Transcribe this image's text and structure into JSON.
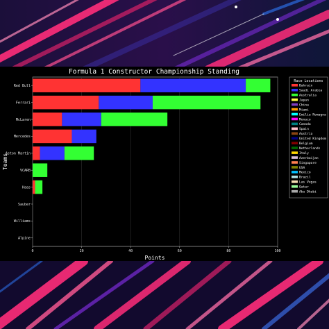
{
  "chart_data": {
    "type": "bar",
    "orientation": "horizontal",
    "stacked": true,
    "title": "Formula 1 Constructor Championship Standing",
    "xlabel": "Points",
    "ylabel": "Teams",
    "xlim": [
      0,
      100
    ],
    "xticks": [
      0,
      20,
      40,
      60,
      80,
      100
    ],
    "grid": true,
    "legend_placement": "right",
    "legend_title": "Race Locations",
    "categories": [
      "Red Bull",
      "Ferrari",
      "McLaren",
      "Mercedes",
      "Aston Martin",
      "VCARB",
      "Haas",
      "Sauber",
      "Williams",
      "Alpine"
    ],
    "series": [
      {
        "name": "Bahrain",
        "color": "#ff3333",
        "values": [
          44,
          27,
          12,
          16,
          3,
          0,
          1,
          0,
          0,
          0
        ]
      },
      {
        "name": "Saudi Arabia",
        "color": "#3333ff",
        "values": [
          43,
          22,
          16,
          10,
          10,
          0,
          0,
          0,
          0,
          0
        ]
      },
      {
        "name": "Australia",
        "color": "#33ff33",
        "values": [
          10,
          44,
          27,
          0,
          12,
          6,
          3,
          0,
          0,
          0
        ]
      }
    ],
    "legend_entries": [
      {
        "name": "Bahrain",
        "color": "#ff3333"
      },
      {
        "name": "Saudi Arabia",
        "color": "#3333ff"
      },
      {
        "name": "Australia",
        "color": "#33ff33"
      },
      {
        "name": "Japan",
        "color": "#ffff44"
      },
      {
        "name": "China",
        "color": "#7f3fbf"
      },
      {
        "name": "Miami",
        "color": "#ff9900"
      },
      {
        "name": "Emilia Romagna",
        "color": "#00ffff"
      },
      {
        "name": "Monaco",
        "color": "#ff00ff"
      },
      {
        "name": "Canada",
        "color": "#008080"
      },
      {
        "name": "Spain",
        "color": "#ffc0cb"
      },
      {
        "name": "Austria",
        "color": "#8b4513"
      },
      {
        "name": "United Kingdom",
        "color": "#000080"
      },
      {
        "name": "Belgium",
        "color": "#800000"
      },
      {
        "name": "Netherlands",
        "color": "#006400"
      },
      {
        "name": "Italy",
        "color": "#ffd700"
      },
      {
        "name": "Azerbaijan",
        "color": "#d8bfd8"
      },
      {
        "name": "Singapore",
        "color": "#ff7f50"
      },
      {
        "name": "USA",
        "color": "#808000"
      },
      {
        "name": "Mexico",
        "color": "#00bfff"
      },
      {
        "name": "Brazil",
        "color": "#b0e0e6"
      },
      {
        "name": "Las Vegas",
        "color": "#f5deb3"
      },
      {
        "name": "Qatar",
        "color": "#98fb98"
      },
      {
        "name": "Abu Dhabi",
        "color": "#a9a9a9"
      }
    ]
  }
}
